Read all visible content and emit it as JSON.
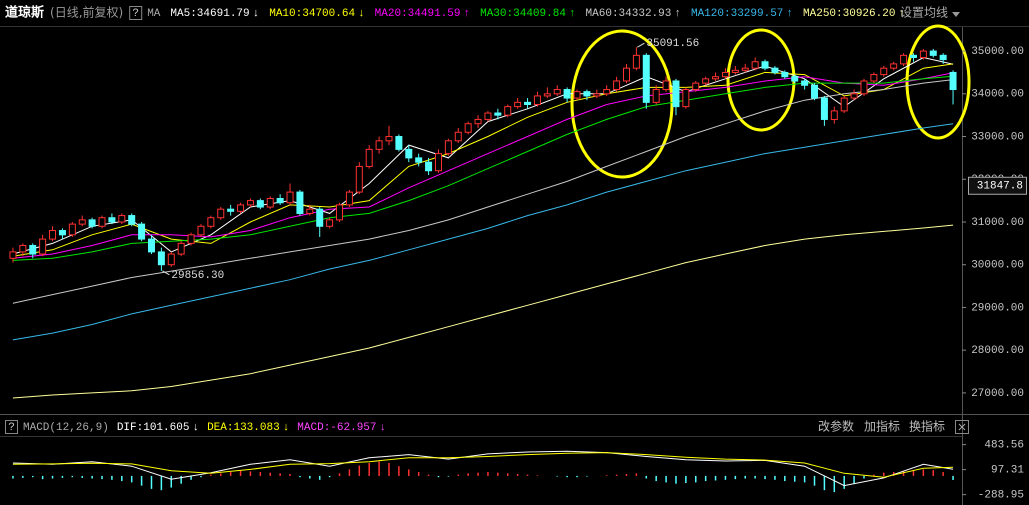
{
  "title": "道琼斯",
  "subtitle": "(日线,前复权)",
  "help": "?",
  "ma_label": "MA",
  "settings": "设置均线",
  "toolbar": [
    "改参数",
    "加指标",
    "换指标"
  ],
  "chart_data": [
    {
      "type": "candlestick",
      "up_color": "#ff3232",
      "down_color": "#54ffff",
      "ylim": [
        26600,
        35540
      ],
      "yticks": [
        {
          "value": 27000,
          "label": "27000.00"
        },
        {
          "value": 28000,
          "label": "28000.00"
        },
        {
          "value": 29000,
          "label": "29000.00"
        },
        {
          "value": 30000,
          "label": "30000.00"
        },
        {
          "value": 31000,
          "label": "31000.00"
        },
        {
          "value": 32000,
          "label": "32000.00"
        },
        {
          "value": 33000,
          "label": "33000.00"
        },
        {
          "value": 34000,
          "label": "34000.00"
        },
        {
          "value": 35000,
          "label": "35000.00"
        }
      ],
      "cursor_price": 31847.8,
      "annotations": [
        {
          "x": 63,
          "y": 35091.56
        },
        {
          "x": 15,
          "y": 29856.3,
          "label": "29856.30"
        }
      ],
      "ohlc": [
        [
          30150,
          30400,
          30050,
          30300
        ],
        [
          30300,
          30500,
          30200,
          30450
        ],
        [
          30450,
          30500,
          30150,
          30250
        ],
        [
          30250,
          30700,
          30200,
          30600
        ],
        [
          30600,
          30900,
          30550,
          30800
        ],
        [
          30800,
          30850,
          30600,
          30700
        ],
        [
          30700,
          31000,
          30650,
          30950
        ],
        [
          30950,
          31150,
          30900,
          31050
        ],
        [
          31050,
          31100,
          30850,
          30900
        ],
        [
          30900,
          31150,
          30850,
          31100
        ],
        [
          31100,
          31200,
          30950,
          31000
        ],
        [
          31000,
          31200,
          30950,
          31150
        ],
        [
          31150,
          31200,
          30900,
          30950
        ],
        [
          30950,
          31000,
          30550,
          30600
        ],
        [
          30600,
          30700,
          30250,
          30300
        ],
        [
          30300,
          30400,
          29856.3,
          30000
        ],
        [
          30000,
          30300,
          29950,
          30250
        ],
        [
          30250,
          30550,
          30200,
          30500
        ],
        [
          30500,
          30750,
          30450,
          30700
        ],
        [
          30700,
          30950,
          30650,
          30900
        ],
        [
          30900,
          31150,
          30850,
          31100
        ],
        [
          31100,
          31350,
          31050,
          31300
        ],
        [
          31300,
          31400,
          31150,
          31250
        ],
        [
          31250,
          31450,
          31200,
          31400
        ],
        [
          31400,
          31550,
          31350,
          31500
        ],
        [
          31500,
          31550,
          31300,
          31350
        ],
        [
          31350,
          31600,
          31300,
          31550
        ],
        [
          31550,
          31650,
          31400,
          31450
        ],
        [
          31450,
          31900,
          31400,
          31700
        ],
        [
          31700,
          31750,
          31150,
          31200
        ],
        [
          31200,
          31400,
          31150,
          31300
        ],
        [
          31300,
          31350,
          30650,
          30900
        ],
        [
          30900,
          31100,
          30850,
          31050
        ],
        [
          31050,
          31450,
          31000,
          31400
        ],
        [
          31400,
          31750,
          31350,
          31700
        ],
        [
          31700,
          32400,
          31650,
          32300
        ],
        [
          32300,
          32800,
          32250,
          32700
        ],
        [
          32700,
          33000,
          32600,
          32900
        ],
        [
          32900,
          33250,
          32800,
          33000
        ],
        [
          33000,
          33050,
          32650,
          32700
        ],
        [
          32700,
          32800,
          32400,
          32500
        ],
        [
          32500,
          32600,
          32300,
          32400
        ],
        [
          32400,
          32500,
          32100,
          32200
        ],
        [
          32200,
          32700,
          32150,
          32600
        ],
        [
          32600,
          32950,
          32550,
          32900
        ],
        [
          32900,
          33200,
          32850,
          33100
        ],
        [
          33100,
          33350,
          33050,
          33300
        ],
        [
          33300,
          33500,
          33200,
          33400
        ],
        [
          33400,
          33600,
          33350,
          33550
        ],
        [
          33550,
          33650,
          33400,
          33500
        ],
        [
          33500,
          33750,
          33450,
          33700
        ],
        [
          33700,
          33900,
          33650,
          33800
        ],
        [
          33800,
          33900,
          33650,
          33750
        ],
        [
          33750,
          34050,
          33700,
          33950
        ],
        [
          33950,
          34150,
          33900,
          34000
        ],
        [
          34000,
          34200,
          33950,
          34100
        ],
        [
          34100,
          34150,
          33800,
          33900
        ],
        [
          33900,
          34100,
          33850,
          34050
        ],
        [
          34050,
          34100,
          33850,
          33950
        ],
        [
          33950,
          34100,
          33900,
          34000
        ],
        [
          34000,
          34200,
          33950,
          34100
        ],
        [
          34100,
          34400,
          34050,
          34300
        ],
        [
          34300,
          34700,
          34250,
          34600
        ],
        [
          34600,
          35091.56,
          34550,
          34900
        ],
        [
          34900,
          34950,
          33650,
          33800
        ],
        [
          33800,
          34200,
          33750,
          34100
        ],
        [
          34100,
          34400,
          34050,
          34300
        ],
        [
          34300,
          34350,
          33500,
          33700
        ],
        [
          33700,
          34150,
          33650,
          34100
        ],
        [
          34100,
          34300,
          34050,
          34250
        ],
        [
          34250,
          34400,
          34200,
          34350
        ],
        [
          34350,
          34500,
          34300,
          34400
        ],
        [
          34400,
          34600,
          34350,
          34500
        ],
        [
          34500,
          34650,
          34450,
          34550
        ],
        [
          34550,
          34700,
          34500,
          34600
        ],
        [
          34600,
          34850,
          34550,
          34750
        ],
        [
          34750,
          34800,
          34550,
          34600
        ],
        [
          34600,
          34650,
          34450,
          34500
        ],
        [
          34500,
          34550,
          34350,
          34400
        ],
        [
          34400,
          34450,
          34250,
          34300
        ],
        [
          34300,
          34350,
          34100,
          34200
        ],
        [
          34200,
          34250,
          33850,
          33900
        ],
        [
          33900,
          33950,
          33250,
          33400
        ],
        [
          33400,
          33700,
          33300,
          33600
        ],
        [
          33600,
          33950,
          33550,
          33900
        ],
        [
          33900,
          34100,
          33850,
          34000
        ],
        [
          34000,
          34350,
          33950,
          34300
        ],
        [
          34300,
          34500,
          34250,
          34450
        ],
        [
          34450,
          34650,
          34400,
          34600
        ],
        [
          34600,
          34750,
          34550,
          34700
        ],
        [
          34700,
          34950,
          34650,
          34900
        ],
        [
          34900,
          34950,
          34750,
          34850
        ],
        [
          34850,
          35050,
          34800,
          35000
        ],
        [
          35000,
          35050,
          34850,
          34900
        ],
        [
          34900,
          34950,
          34700,
          34800
        ],
        [
          34500,
          34550,
          33750,
          34100
        ]
      ],
      "x": [
        0,
        4,
        8,
        12,
        16,
        20,
        24,
        28,
        32,
        36,
        40,
        44,
        48,
        52,
        56,
        60,
        64,
        68,
        72,
        76,
        80,
        84,
        88,
        92,
        95
      ],
      "series": [
        {
          "name": "MA5:34691.79",
          "arrow": "↓",
          "color": "#ffffff",
          "values": [
            30250,
            30500,
            30900,
            31050,
            30300,
            30700,
            31350,
            31500,
            31200,
            31900,
            32800,
            32500,
            33350,
            33650,
            34000,
            34000,
            34400,
            34050,
            34350,
            34650,
            34350,
            33700,
            34350,
            34850,
            34691.79
          ]
        },
        {
          "name": "MA10:34700.64",
          "arrow": "↓",
          "color": "#ffff00",
          "values": [
            30200,
            30350,
            30700,
            30950,
            30600,
            30500,
            31000,
            31400,
            31350,
            31500,
            32300,
            32600,
            33000,
            33450,
            33800,
            34000,
            34150,
            34150,
            34200,
            34500,
            34450,
            33950,
            34100,
            34600,
            34700.64
          ]
        },
        {
          "name": "MA20:34491.59",
          "arrow": "↑",
          "color": "#ff00ff",
          "values": [
            30150,
            30250,
            30450,
            30700,
            30700,
            30650,
            30800,
            31100,
            31300,
            31350,
            31800,
            32200,
            32600,
            33000,
            33400,
            33750,
            33950,
            34050,
            34150,
            34300,
            34400,
            34250,
            34200,
            34350,
            34491.59
          ]
        },
        {
          "name": "MA30:34409.84",
          "arrow": "↑",
          "color": "#00e600",
          "values": [
            30100,
            30150,
            30300,
            30500,
            30550,
            30600,
            30700,
            30900,
            31100,
            31200,
            31500,
            31850,
            32250,
            32650,
            33050,
            33400,
            33700,
            33850,
            34000,
            34150,
            34250,
            34250,
            34250,
            34350,
            34409.84
          ]
        },
        {
          "name": "MA60:34332.93",
          "arrow": "↑",
          "color": "#c8c8c8",
          "values": [
            29100,
            29300,
            29500,
            29700,
            29850,
            30000,
            30150,
            30300,
            30450,
            30600,
            30800,
            31050,
            31350,
            31650,
            31950,
            32300,
            32650,
            33000,
            33300,
            33600,
            33850,
            34000,
            34100,
            34250,
            34332.93
          ]
        },
        {
          "name": "MA120:33299.57",
          "arrow": "↑",
          "color": "#38b8e8",
          "values": [
            28240,
            28400,
            28600,
            28850,
            29050,
            29250,
            29450,
            29650,
            29900,
            30100,
            30350,
            30600,
            30850,
            31150,
            31400,
            31700,
            31950,
            32200,
            32400,
            32600,
            32750,
            32900,
            33050,
            33200,
            33299.57
          ]
        },
        {
          "name": "MA250:30926.20",
          "arrow": "↑",
          "color": "#ffff99",
          "values": [
            26880,
            26950,
            27000,
            27050,
            27150,
            27300,
            27450,
            27650,
            27850,
            28050,
            28300,
            28550,
            28800,
            29050,
            29300,
            29550,
            29800,
            30050,
            30250,
            30450,
            30600,
            30700,
            30780,
            30860,
            30926.2
          ]
        }
      ]
    },
    {
      "type": "macd",
      "title": "MACD(12,26,9)",
      "help": "?",
      "ylim": [
        -403,
        555
      ],
      "yticks": [
        483.56,
        97.31,
        -288.95
      ],
      "x": [
        0,
        4,
        8,
        12,
        16,
        20,
        24,
        28,
        32,
        36,
        40,
        44,
        48,
        52,
        56,
        60,
        64,
        68,
        72,
        76,
        80,
        84,
        88,
        92,
        95
      ],
      "series": [
        {
          "name": "DIF:101.605",
          "arrow": "↓",
          "color": "#ffffff",
          "values": [
            200,
            180,
            220,
            150,
            -50,
            50,
            180,
            250,
            150,
            280,
            330,
            260,
            340,
            370,
            380,
            360,
            300,
            250,
            230,
            240,
            150,
            -150,
            -30,
            180,
            101.605
          ]
        },
        {
          "name": "DEA:133.083",
          "arrow": "↓",
          "color": "#ffff00",
          "values": [
            180,
            185,
            195,
            185,
            80,
            40,
            100,
            180,
            190,
            220,
            280,
            280,
            300,
            330,
            350,
            360,
            330,
            290,
            260,
            245,
            200,
            40,
            -20,
            120,
            133.083
          ]
        }
      ],
      "histogram": {
        "name": "MACD:-62.957",
        "arrow": "↓",
        "color": "#ff44ff",
        "up_color": "#ff3232",
        "down_color": "#54ffff",
        "values": [
          -40,
          -30,
          -20,
          -50,
          -40,
          -30,
          -20,
          -30,
          -40,
          -50,
          -60,
          -80,
          -100,
          -150,
          -200,
          -220,
          -180,
          -120,
          -60,
          -20,
          20,
          40,
          60,
          80,
          70,
          60,
          50,
          40,
          30,
          -20,
          -40,
          -60,
          -20,
          40,
          100,
          160,
          200,
          220,
          200,
          150,
          100,
          60,
          20,
          -20,
          -10,
          20,
          40,
          50,
          60,
          50,
          40,
          30,
          20,
          10,
          0,
          -10,
          -20,
          -20,
          -10,
          0,
          10,
          20,
          30,
          40,
          -40,
          -80,
          -100,
          -120,
          -110,
          -100,
          -80,
          -70,
          -60,
          -50,
          -40,
          -40,
          -50,
          -60,
          -80,
          -90,
          -100,
          -150,
          -220,
          -250,
          -200,
          -120,
          -40,
          20,
          50,
          60,
          80,
          90,
          100,
          90,
          60,
          -62.957
        ]
      }
    }
  ]
}
